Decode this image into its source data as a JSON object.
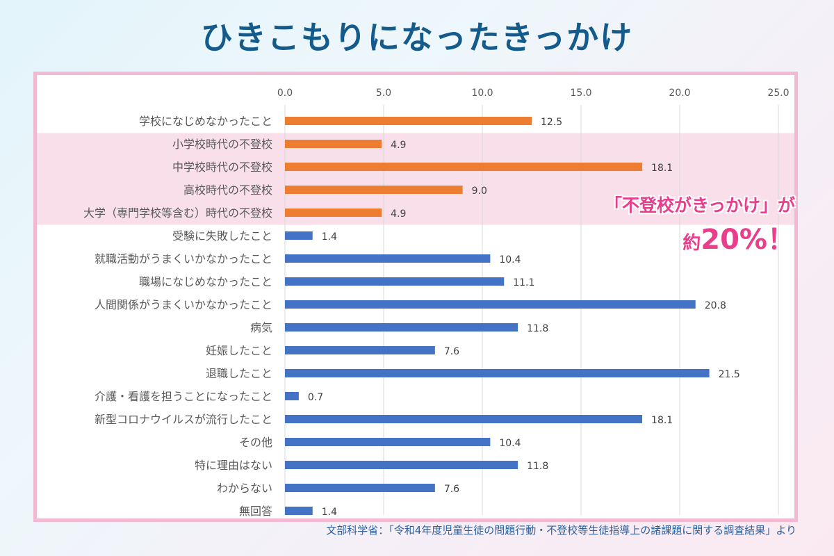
{
  "header": {
    "title": "ひきこもりになったきっかけ"
  },
  "callout": {
    "line1": "「不登校がきっかけ」が",
    "prefix": "約",
    "highlight": "20%！"
  },
  "source": "文部科学省：「令和4年度児童生徒の問題行動・不登校等生徒指導上の諸課題に関する調査結果」より",
  "chart_data": {
    "type": "bar",
    "orientation": "horizontal",
    "title": "",
    "xlabel": "",
    "ylabel": "",
    "xlim": [
      0,
      25
    ],
    "ticks": [
      "0.0",
      "5.0",
      "10.0",
      "15.0",
      "20.0",
      "25.0"
    ],
    "grid": true,
    "legend": "none",
    "highlight_band": [
      "小学校時代の不登校",
      "大学（専門学校等含む）時代の不登校"
    ],
    "colors": {
      "school": "#ed7d31",
      "other": "#4472c4",
      "band": "#f8dfe9",
      "grid": "#d9d9d9"
    },
    "categories": [
      "学校になじめなかったこと",
      "小学校時代の不登校",
      "中学校時代の不登校",
      "高校時代の不登校",
      "大学（専門学校等含む）時代の不登校",
      "受験に失敗したこと",
      "就職活動がうまくいかなかったこと",
      "職場になじめなかったこと",
      "人間関係がうまくいかなかったこと",
      "病気",
      "妊娠したこと",
      "退職したこと",
      "介護・看護を担うことになったこと",
      "新型コロナウイルスが流行したこと",
      "その他",
      "特に理由はない",
      "わからない",
      "無回答"
    ],
    "values": [
      12.5,
      4.9,
      18.1,
      9.0,
      4.9,
      1.4,
      10.4,
      11.1,
      20.8,
      11.8,
      7.6,
      21.5,
      0.7,
      18.1,
      10.4,
      11.8,
      7.6,
      1.4
    ],
    "labels": [
      "12.5",
      "4.9",
      "18.1",
      "9.0",
      "4.9",
      "1.4",
      "10.4",
      "11.1",
      "20.8",
      "11.8",
      "7.6",
      "21.5",
      "0.7",
      "18.1",
      "10.4",
      "11.8",
      "7.6",
      "1.4"
    ],
    "series_color": [
      "school",
      "school",
      "school",
      "school",
      "school",
      "other",
      "other",
      "other",
      "other",
      "other",
      "other",
      "other",
      "other",
      "other",
      "other",
      "other",
      "other",
      "other"
    ]
  }
}
